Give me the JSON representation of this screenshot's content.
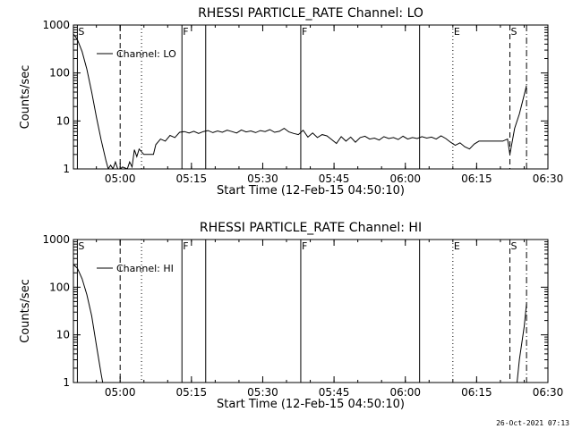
{
  "footer": {
    "date": "26-Oct-2021 07:13"
  },
  "chart_data": [
    {
      "type": "line",
      "title": "RHESSI PARTICLE_RATE Channel: LO",
      "xlabel": "Start Time (12-Feb-15 04:50:10)",
      "ylabel": "Counts/sec",
      "xlim": [
        "04:50:10",
        "06:30:00"
      ],
      "ylim": [
        1,
        1000
      ],
      "yscale": "log",
      "grid": false,
      "legend": "top-left",
      "x_ticks": [
        "05:00",
        "05:15",
        "05:30",
        "05:45",
        "06:00",
        "06:15",
        "06:30"
      ],
      "y_ticks": [
        "1",
        "10",
        "100",
        "1000"
      ],
      "series": [
        {
          "name": "Channel: LO",
          "points": [
            [
              "04:50:10",
              650
            ],
            [
              "04:51:00",
              500
            ],
            [
              "04:52:00",
              280
            ],
            [
              "04:53:00",
              120
            ],
            [
              "04:54:00",
              40
            ],
            [
              "04:55:00",
              12
            ],
            [
              "04:56:00",
              4
            ],
            [
              "04:57:00",
              1.5
            ],
            [
              "04:57:30",
              1
            ],
            [
              "04:58:00",
              1.2
            ],
            [
              "04:58:30",
              1
            ],
            [
              "04:59:00",
              1.4
            ],
            [
              "04:59:30",
              1
            ],
            [
              "05:00:00",
              1
            ],
            [
              "05:00:30",
              1.1
            ],
            [
              "05:01:30",
              1
            ],
            [
              "05:02:00",
              1.4
            ],
            [
              "05:02:30",
              1.1
            ],
            [
              "05:03:00",
              2.5
            ],
            [
              "05:03:30",
              1.8
            ],
            [
              "05:04:00",
              2.6
            ],
            [
              "05:05:00",
              2.0
            ],
            [
              "05:06:00",
              2.0
            ],
            [
              "05:07:00",
              2.0
            ],
            [
              "05:07:30",
              3.2
            ],
            [
              "05:08:30",
              4.2
            ],
            [
              "05:09:30",
              3.8
            ],
            [
              "05:10:30",
              5.0
            ],
            [
              "05:11:30",
              4.5
            ],
            [
              "05:12:30",
              5.8
            ],
            [
              "05:13:30",
              6.0
            ],
            [
              "05:14:30",
              5.6
            ],
            [
              "05:15:30",
              6.1
            ],
            [
              "05:16:30",
              5.5
            ],
            [
              "05:17:30",
              6.0
            ],
            [
              "05:18:30",
              6.3
            ],
            [
              "05:19:30",
              5.7
            ],
            [
              "05:20:30",
              6.2
            ],
            [
              "05:21:30",
              5.8
            ],
            [
              "05:22:30",
              6.4
            ],
            [
              "05:23:30",
              6.0
            ],
            [
              "05:24:30",
              5.6
            ],
            [
              "05:25:30",
              6.5
            ],
            [
              "05:26:30",
              5.9
            ],
            [
              "05:27:30",
              6.2
            ],
            [
              "05:28:30",
              5.7
            ],
            [
              "05:29:30",
              6.3
            ],
            [
              "05:30:30",
              6.0
            ],
            [
              "05:31:30",
              6.6
            ],
            [
              "05:32:30",
              5.8
            ],
            [
              "05:33:30",
              6.1
            ],
            [
              "05:34:30",
              7.0
            ],
            [
              "05:35:30",
              5.9
            ],
            [
              "05:36:30",
              5.5
            ],
            [
              "05:37:30",
              5.2
            ],
            [
              "05:38:30",
              6.4
            ],
            [
              "05:39:30",
              4.6
            ],
            [
              "05:40:30",
              5.6
            ],
            [
              "05:41:30",
              4.5
            ],
            [
              "05:42:30",
              5.2
            ],
            [
              "05:43:30",
              4.9
            ],
            [
              "05:44:30",
              4.1
            ],
            [
              "05:45:30",
              3.4
            ],
            [
              "05:46:30",
              4.7
            ],
            [
              "05:47:30",
              3.8
            ],
            [
              "05:48:30",
              4.6
            ],
            [
              "05:49:30",
              3.6
            ],
            [
              "05:50:30",
              4.5
            ],
            [
              "05:51:30",
              4.8
            ],
            [
              "05:52:30",
              4.2
            ],
            [
              "05:53:30",
              4.4
            ],
            [
              "05:54:30",
              4.0
            ],
            [
              "05:55:30",
              4.7
            ],
            [
              "05:56:30",
              4.3
            ],
            [
              "05:57:30",
              4.5
            ],
            [
              "05:58:30",
              4.1
            ],
            [
              "05:59:30",
              4.8
            ],
            [
              "06:00:30",
              4.2
            ],
            [
              "06:01:30",
              4.5
            ],
            [
              "06:02:30",
              4.3
            ],
            [
              "06:03:30",
              4.7
            ],
            [
              "06:04:30",
              4.4
            ],
            [
              "06:05:30",
              4.6
            ],
            [
              "06:06:30",
              4.2
            ],
            [
              "06:07:30",
              4.9
            ],
            [
              "06:08:30",
              4.3
            ],
            [
              "06:09:30",
              3.6
            ],
            [
              "06:10:30",
              3.1
            ],
            [
              "06:11:30",
              3.5
            ],
            [
              "06:12:30",
              2.9
            ],
            [
              "06:13:30",
              2.6
            ],
            [
              "06:14:30",
              3.3
            ],
            [
              "06:15:30",
              3.8
            ],
            [
              "06:16:30",
              3.8
            ],
            [
              "06:17:30",
              3.8
            ],
            [
              "06:18:30",
              3.8
            ],
            [
              "06:19:30",
              3.8
            ],
            [
              "06:20:30",
              3.8
            ],
            [
              "06:21:30",
              4.2
            ],
            [
              "06:22:00",
              2.0
            ],
            [
              "06:23:00",
              7
            ],
            [
              "06:24:00",
              14
            ],
            [
              "06:25:00",
              35
            ],
            [
              "06:25:30",
              55
            ]
          ]
        }
      ],
      "event_lines": [
        {
          "time": "04:51:00",
          "style": "solid",
          "label": "S"
        },
        {
          "time": "05:00:00",
          "style": "dashed",
          "label": ""
        },
        {
          "time": "05:04:30",
          "style": "dotted",
          "label": ""
        },
        {
          "time": "05:13:00",
          "style": "solid",
          "label": "F"
        },
        {
          "time": "05:18:00",
          "style": "solid",
          "label": ""
        },
        {
          "time": "05:38:00",
          "style": "solid",
          "label": "F"
        },
        {
          "time": "06:03:00",
          "style": "solid",
          "label": ""
        },
        {
          "time": "06:10:00",
          "style": "dotted",
          "label": "E"
        },
        {
          "time": "06:22:00",
          "style": "dashed",
          "label": "S"
        },
        {
          "time": "06:25:30",
          "style": "dashdot",
          "label": ""
        }
      ]
    },
    {
      "type": "line",
      "title": "RHESSI PARTICLE_RATE Channel: HI",
      "xlabel": "Start Time (12-Feb-15 04:50:10)",
      "ylabel": "Counts/sec",
      "xlim": [
        "04:50:10",
        "06:30:00"
      ],
      "ylim": [
        1,
        1000
      ],
      "yscale": "log",
      "grid": false,
      "legend": "top-left",
      "x_ticks": [
        "05:00",
        "05:15",
        "05:30",
        "05:45",
        "06:00",
        "06:15",
        "06:30"
      ],
      "y_ticks": [
        "1",
        "10",
        "100",
        "1000"
      ],
      "series": [
        {
          "name": "Channel: HI",
          "points": [
            [
              "04:50:10",
              300
            ],
            [
              "04:51:00",
              250
            ],
            [
              "04:52:00",
              150
            ],
            [
              "04:53:00",
              70
            ],
            [
              "04:54:00",
              25
            ],
            [
              "04:55:00",
              6
            ],
            [
              "04:56:00",
              1.5
            ],
            [
              "04:56:20",
              1
            ],
            [
              "06:23:30",
              1
            ],
            [
              "06:24:00",
              3
            ],
            [
              "06:25:00",
              15
            ],
            [
              "06:25:30",
              45
            ]
          ]
        }
      ],
      "event_lines": [
        {
          "time": "04:51:00",
          "style": "solid",
          "label": "S"
        },
        {
          "time": "05:00:00",
          "style": "dashed",
          "label": ""
        },
        {
          "time": "05:04:30",
          "style": "dotted",
          "label": ""
        },
        {
          "time": "05:13:00",
          "style": "solid",
          "label": "F"
        },
        {
          "time": "05:18:00",
          "style": "solid",
          "label": ""
        },
        {
          "time": "05:38:00",
          "style": "solid",
          "label": "F"
        },
        {
          "time": "06:03:00",
          "style": "solid",
          "label": ""
        },
        {
          "time": "06:10:00",
          "style": "dotted",
          "label": "E"
        },
        {
          "time": "06:22:00",
          "style": "dashed",
          "label": "S"
        },
        {
          "time": "06:25:30",
          "style": "dashdot",
          "label": ""
        }
      ]
    }
  ]
}
